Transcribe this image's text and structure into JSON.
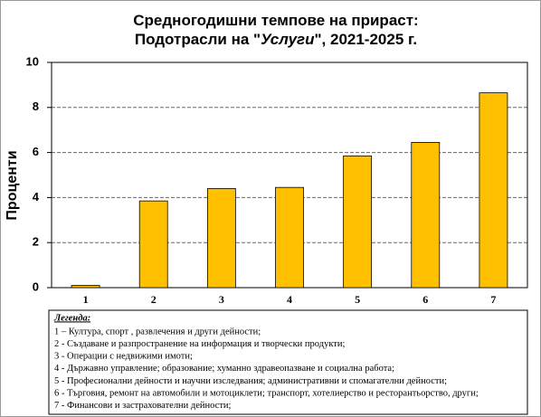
{
  "chart_data": {
    "type": "bar",
    "title_lines": [
      [
        "Средногодишни темпове на прираст:"
      ],
      [
        "Подотрасли на \"",
        "Услуги",
        "\", 2021-2025 г."
      ]
    ],
    "y_label": "Проценти",
    "categories": [
      "1",
      "2",
      "3",
      "4",
      "5",
      "6",
      "7"
    ],
    "values": [
      0.1,
      3.85,
      4.4,
      4.45,
      5.85,
      6.45,
      8.65
    ],
    "color": "#ffc000",
    "ylim": [
      0,
      10
    ],
    "yticks": [
      0,
      2,
      4,
      6,
      8,
      10
    ],
    "grid": true,
    "legend": {
      "title": "Легенда:",
      "items": [
        "1 – Култура, спорт , развлечения и други дейности;",
        "2 - Създаване и разпространение на информация и творчески продукти;",
        "3 - Операции с недвижими имоти;",
        "4 - Държавно управление; образование; хуманно здравеопазване и социална работа;",
        "5 - Професионални дейности и научни изследвания; административни и спомагателни дейности;",
        "6 - Търговия, ремонт на автомобили и мотоциклети; транспорт, хотелиерство и ресторантьорство, други;",
        "7 - Финансови и застрахователни дейности;"
      ]
    }
  }
}
